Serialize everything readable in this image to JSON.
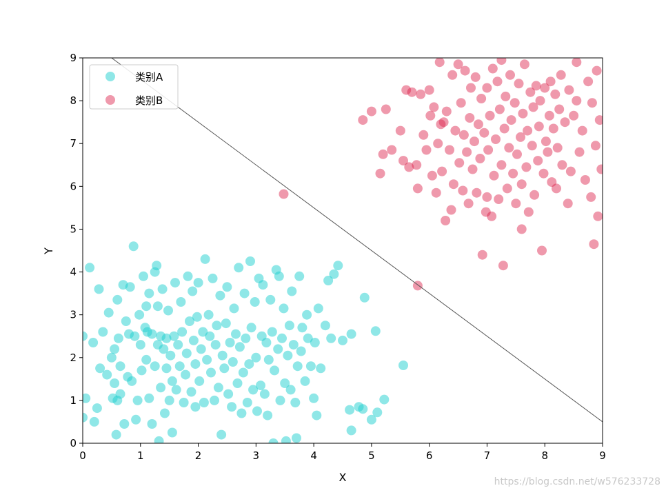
{
  "chart_data": {
    "type": "scatter",
    "title": "",
    "xlabel": "X",
    "ylabel": "Y",
    "xlim": [
      0,
      9
    ],
    "ylim": [
      0,
      9
    ],
    "xticks": [
      "0",
      "1",
      "2",
      "3",
      "4",
      "5",
      "6",
      "7",
      "8",
      "9"
    ],
    "yticks": [
      "0",
      "1",
      "2",
      "3",
      "4",
      "5",
      "6",
      "7",
      "8",
      "9"
    ],
    "grid": false,
    "legend": {
      "position": "top-left",
      "entries": [
        "类别A",
        "类别B"
      ]
    },
    "series": [
      {
        "name": "类别A",
        "color": "#1fcfd0",
        "alpha": 0.5,
        "points": [
          [
            0.0,
            2.5
          ],
          [
            0.05,
            1.05
          ],
          [
            0.12,
            4.1
          ],
          [
            0.18,
            2.35
          ],
          [
            0.2,
            0.5
          ],
          [
            0.25,
            0.82
          ],
          [
            0.28,
            3.6
          ],
          [
            0.3,
            1.75
          ],
          [
            0.35,
            2.6
          ],
          [
            0.42,
            1.6
          ],
          [
            0.45,
            3.05
          ],
          [
            0.5,
            2.0
          ],
          [
            0.55,
            2.2
          ],
          [
            0.55,
            1.4
          ],
          [
            0.58,
            0.2
          ],
          [
            0.6,
            1.0
          ],
          [
            0.6,
            3.35
          ],
          [
            0.62,
            2.45
          ],
          [
            0.65,
            1.8
          ],
          [
            0.65,
            1.15
          ],
          [
            0.7,
            3.7
          ],
          [
            0.72,
            0.45
          ],
          [
            0.75,
            2.85
          ],
          [
            0.78,
            1.55
          ],
          [
            0.8,
            2.55
          ],
          [
            0.82,
            3.65
          ],
          [
            0.85,
            1.45
          ],
          [
            0.88,
            4.6
          ],
          [
            0.9,
            2.5
          ],
          [
            0.92,
            0.55
          ],
          [
            0.95,
            1.0
          ],
          [
            0.98,
            3.0
          ],
          [
            1.0,
            2.3
          ],
          [
            1.02,
            1.7
          ],
          [
            1.05,
            3.9
          ],
          [
            1.08,
            2.7
          ],
          [
            1.1,
            1.95
          ],
          [
            1.12,
            2.6
          ],
          [
            1.15,
            1.05
          ],
          [
            1.15,
            3.5
          ],
          [
            1.2,
            2.55
          ],
          [
            1.2,
            0.45
          ],
          [
            1.25,
            1.8
          ],
          [
            1.25,
            4.0
          ],
          [
            1.28,
            4.15
          ],
          [
            1.3,
            2.3
          ],
          [
            1.3,
            3.2
          ],
          [
            1.32,
            0.05
          ],
          [
            1.35,
            2.5
          ],
          [
            1.35,
            1.3
          ],
          [
            1.38,
            3.6
          ],
          [
            1.4,
            2.2
          ],
          [
            1.42,
            0.7
          ],
          [
            1.45,
            1.75
          ],
          [
            1.45,
            2.45
          ],
          [
            1.48,
            3.1
          ],
          [
            1.5,
            1.0
          ],
          [
            1.52,
            2.05
          ],
          [
            1.55,
            1.45
          ],
          [
            1.55,
            0.25
          ],
          [
            1.58,
            2.5
          ],
          [
            1.6,
            3.75
          ],
          [
            1.62,
            1.25
          ],
          [
            1.65,
            2.3
          ],
          [
            1.68,
            1.8
          ],
          [
            1.7,
            3.3
          ],
          [
            1.72,
            2.6
          ],
          [
            1.75,
            0.95
          ],
          [
            1.78,
            1.6
          ],
          [
            1.8,
            2.1
          ],
          [
            1.82,
            3.9
          ],
          [
            1.85,
            2.85
          ],
          [
            1.88,
            1.2
          ],
          [
            1.9,
            3.55
          ],
          [
            1.92,
            2.4
          ],
          [
            1.95,
            1.85
          ],
          [
            1.95,
            0.85
          ],
          [
            1.98,
            2.95
          ],
          [
            2.0,
            3.75
          ],
          [
            2.02,
            1.45
          ],
          [
            2.05,
            2.2
          ],
          [
            2.08,
            2.6
          ],
          [
            2.1,
            0.95
          ],
          [
            2.12,
            4.3
          ],
          [
            2.15,
            1.95
          ],
          [
            2.18,
            3.0
          ],
          [
            2.2,
            2.5
          ],
          [
            2.22,
            1.65
          ],
          [
            2.25,
            3.85
          ],
          [
            2.28,
            1.0
          ],
          [
            2.3,
            2.3
          ],
          [
            2.32,
            2.75
          ],
          [
            2.35,
            1.3
          ],
          [
            2.38,
            3.45
          ],
          [
            2.4,
            0.2
          ],
          [
            2.42,
            2.05
          ],
          [
            2.45,
            1.75
          ],
          [
            2.48,
            2.8
          ],
          [
            2.5,
            3.65
          ],
          [
            2.52,
            1.15
          ],
          [
            2.55,
            2.35
          ],
          [
            2.58,
            0.85
          ],
          [
            2.6,
            1.9
          ],
          [
            2.62,
            3.15
          ],
          [
            2.65,
            2.55
          ],
          [
            2.68,
            1.4
          ],
          [
            2.7,
            4.1
          ],
          [
            2.72,
            2.25
          ],
          [
            2.75,
            0.7
          ],
          [
            2.78,
            1.65
          ],
          [
            2.8,
            3.5
          ],
          [
            2.82,
            2.45
          ],
          [
            2.85,
            0.95
          ],
          [
            2.88,
            1.85
          ],
          [
            2.9,
            4.25
          ],
          [
            2.92,
            2.7
          ],
          [
            2.95,
            1.25
          ],
          [
            2.98,
            3.3
          ],
          [
            3.0,
            2.0
          ],
          [
            3.02,
            0.75
          ],
          [
            3.05,
            3.85
          ],
          [
            3.08,
            1.35
          ],
          [
            3.1,
            2.5
          ],
          [
            3.12,
            3.7
          ],
          [
            3.15,
            1.15
          ],
          [
            3.18,
            2.35
          ],
          [
            3.2,
            0.65
          ],
          [
            3.22,
            1.95
          ],
          [
            3.25,
            3.35
          ],
          [
            3.28,
            2.6
          ],
          [
            3.3,
            0.0
          ],
          [
            3.32,
            1.7
          ],
          [
            3.35,
            4.05
          ],
          [
            3.38,
            2.2
          ],
          [
            3.4,
            3.9
          ],
          [
            3.42,
            1.0
          ],
          [
            3.45,
            2.45
          ],
          [
            3.48,
            3.15
          ],
          [
            3.5,
            1.4
          ],
          [
            3.52,
            0.05
          ],
          [
            3.55,
            2.05
          ],
          [
            3.58,
            2.75
          ],
          [
            3.6,
            1.25
          ],
          [
            3.62,
            3.55
          ],
          [
            3.65,
            2.3
          ],
          [
            3.68,
            0.95
          ],
          [
            3.7,
            0.12
          ],
          [
            3.72,
            1.8
          ],
          [
            3.75,
            3.9
          ],
          [
            3.78,
            2.15
          ],
          [
            3.8,
            2.7
          ],
          [
            3.85,
            1.45
          ],
          [
            3.88,
            3.0
          ],
          [
            3.9,
            2.45
          ],
          [
            3.95,
            1.8
          ],
          [
            4.0,
            1.05
          ],
          [
            4.02,
            2.35
          ],
          [
            4.05,
            0.65
          ],
          [
            4.08,
            3.15
          ],
          [
            4.12,
            1.75
          ],
          [
            4.2,
            2.75
          ],
          [
            4.25,
            3.8
          ],
          [
            4.3,
            2.45
          ],
          [
            4.35,
            3.95
          ],
          [
            4.42,
            4.15
          ],
          [
            4.5,
            2.4
          ],
          [
            4.62,
            0.78
          ],
          [
            4.65,
            2.55
          ],
          [
            4.65,
            0.3
          ],
          [
            4.78,
            0.85
          ],
          [
            4.85,
            0.8
          ],
          [
            4.88,
            3.4
          ],
          [
            5.0,
            0.55
          ],
          [
            5.07,
            2.62
          ],
          [
            5.1,
            0.72
          ],
          [
            5.22,
            1.02
          ],
          [
            5.55,
            1.82
          ],
          [
            0.0,
            0.6
          ],
          [
            0.52,
            1.05
          ],
          [
            1.1,
            3.2
          ]
        ]
      },
      {
        "name": "类别B",
        "color": "#dc1c46",
        "alpha": 0.45,
        "points": [
          [
            3.48,
            5.82
          ],
          [
            5.8,
            3.68
          ],
          [
            4.85,
            7.55
          ],
          [
            5.0,
            7.75
          ],
          [
            5.15,
            6.3
          ],
          [
            5.2,
            6.75
          ],
          [
            5.25,
            7.8
          ],
          [
            5.35,
            6.85
          ],
          [
            5.5,
            7.3
          ],
          [
            5.55,
            6.6
          ],
          [
            5.6,
            8.25
          ],
          [
            5.65,
            6.45
          ],
          [
            5.7,
            8.2
          ],
          [
            5.78,
            6.5
          ],
          [
            5.8,
            5.95
          ],
          [
            5.85,
            8.15
          ],
          [
            5.9,
            7.2
          ],
          [
            5.95,
            6.85
          ],
          [
            6.0,
            8.25
          ],
          [
            6.02,
            7.65
          ],
          [
            6.05,
            6.25
          ],
          [
            6.08,
            7.85
          ],
          [
            6.12,
            5.85
          ],
          [
            6.15,
            7.0
          ],
          [
            6.18,
            8.9
          ],
          [
            6.22,
            6.35
          ],
          [
            6.25,
            7.5
          ],
          [
            6.28,
            5.2
          ],
          [
            6.3,
            7.75
          ],
          [
            6.35,
            6.85
          ],
          [
            6.38,
            5.45
          ],
          [
            6.4,
            8.6
          ],
          [
            6.42,
            6.05
          ],
          [
            6.45,
            7.3
          ],
          [
            6.5,
            8.85
          ],
          [
            6.52,
            6.55
          ],
          [
            6.55,
            7.95
          ],
          [
            6.58,
            5.9
          ],
          [
            6.6,
            7.2
          ],
          [
            6.62,
            8.7
          ],
          [
            6.65,
            6.8
          ],
          [
            6.68,
            5.6
          ],
          [
            6.7,
            7.6
          ],
          [
            6.72,
            8.3
          ],
          [
            6.75,
            6.4
          ],
          [
            6.78,
            7.05
          ],
          [
            6.8,
            8.55
          ],
          [
            6.82,
            5.85
          ],
          [
            6.85,
            7.45
          ],
          [
            6.88,
            6.65
          ],
          [
            6.9,
            8.05
          ],
          [
            6.92,
            4.4
          ],
          [
            6.95,
            7.25
          ],
          [
            6.98,
            5.4
          ],
          [
            7.0,
            8.3
          ],
          [
            7.02,
            6.85
          ],
          [
            7.05,
            7.65
          ],
          [
            7.08,
            5.3
          ],
          [
            7.1,
            8.75
          ],
          [
            7.12,
            6.25
          ],
          [
            7.15,
            7.1
          ],
          [
            7.18,
            8.45
          ],
          [
            7.2,
            5.7
          ],
          [
            7.22,
            7.8
          ],
          [
            7.25,
            6.5
          ],
          [
            7.28,
            4.15
          ],
          [
            7.3,
            7.35
          ],
          [
            7.32,
            8.1
          ],
          [
            7.35,
            5.95
          ],
          [
            7.38,
            6.9
          ],
          [
            7.4,
            8.6
          ],
          [
            7.42,
            7.55
          ],
          [
            7.45,
            6.3
          ],
          [
            7.48,
            7.95
          ],
          [
            7.5,
            5.6
          ],
          [
            7.52,
            6.75
          ],
          [
            7.55,
            8.4
          ],
          [
            7.58,
            7.15
          ],
          [
            7.6,
            6.05
          ],
          [
            7.62,
            7.7
          ],
          [
            7.65,
            8.85
          ],
          [
            7.68,
            6.45
          ],
          [
            7.7,
            7.3
          ],
          [
            7.72,
            5.4
          ],
          [
            7.75,
            8.2
          ],
          [
            7.78,
            6.95
          ],
          [
            7.8,
            7.85
          ],
          [
            7.82,
            5.8
          ],
          [
            7.85,
            8.35
          ],
          [
            7.88,
            6.6
          ],
          [
            7.9,
            7.4
          ],
          [
            7.92,
            8.0
          ],
          [
            7.95,
            4.5
          ],
          [
            7.98,
            6.3
          ],
          [
            8.0,
            8.3
          ],
          [
            8.02,
            7.05
          ],
          [
            8.05,
            6.8
          ],
          [
            8.08,
            7.65
          ],
          [
            8.1,
            8.45
          ],
          [
            8.12,
            6.1
          ],
          [
            8.15,
            7.35
          ],
          [
            8.18,
            8.15
          ],
          [
            8.2,
            5.95
          ],
          [
            8.22,
            6.9
          ],
          [
            8.25,
            7.8
          ],
          [
            8.28,
            8.6
          ],
          [
            8.3,
            6.5
          ],
          [
            8.35,
            7.5
          ],
          [
            8.4,
            5.6
          ],
          [
            8.42,
            8.25
          ],
          [
            8.45,
            6.35
          ],
          [
            8.5,
            7.65
          ],
          [
            8.55,
            8.9
          ],
          [
            8.6,
            6.8
          ],
          [
            8.65,
            7.3
          ],
          [
            8.7,
            6.15
          ],
          [
            8.75,
            8.45
          ],
          [
            8.8,
            5.75
          ],
          [
            8.82,
            7.95
          ],
          [
            8.85,
            4.65
          ],
          [
            8.88,
            6.95
          ],
          [
            8.9,
            8.7
          ],
          [
            8.92,
            5.3
          ],
          [
            8.95,
            7.55
          ],
          [
            8.98,
            6.4
          ],
          [
            8.55,
            8.0
          ],
          [
            7.6,
            5.0
          ],
          [
            7.0,
            5.75
          ],
          [
            6.2,
            7.45
          ],
          [
            7.25,
            8.95
          ]
        ]
      }
    ],
    "divider_line": {
      "x": [
        0.5,
        9.0
      ],
      "y": [
        9.0,
        0.5
      ],
      "color": "#555555"
    }
  },
  "watermark": "https://blog.csdn.net/w576233728"
}
